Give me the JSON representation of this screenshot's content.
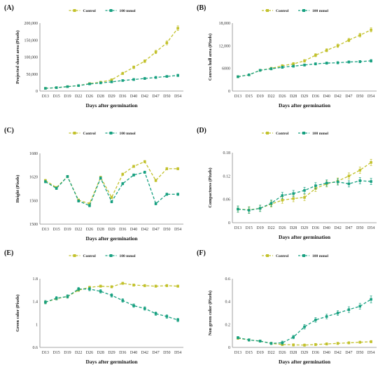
{
  "colors": {
    "control": "#c2c12b",
    "treatment": "#17a080",
    "axis": "#8a8a8a",
    "grid": "#d9d9d9"
  },
  "x_categories": [
    "D13",
    "D15",
    "D19",
    "D22",
    "D26",
    "D28",
    "D29",
    "D36",
    "D40",
    "D42",
    "D47",
    "D50",
    "D54"
  ],
  "chart_data": [
    {
      "type": "line",
      "panel_label": "(A)",
      "title": "",
      "xlabel": "Days after germination",
      "ylabel": "Projected shoot area (Pixels)",
      "ylim": [
        0,
        200000
      ],
      "yticks": [
        0,
        50000,
        100000,
        150000,
        200000
      ],
      "ytick_labels": [
        "0",
        "50,000",
        "100,000",
        "150,000",
        "200,000"
      ],
      "legend": "top-center",
      "series": [
        {
          "name": "Control",
          "values": [
            8000,
            10000,
            13000,
            16000,
            22000,
            26000,
            33000,
            52000,
            70000,
            88000,
            115000,
            142000,
            185000
          ],
          "errors": [
            1500,
            1500,
            1500,
            2000,
            2500,
            2500,
            3000,
            3500,
            4000,
            4000,
            5000,
            6000,
            7000
          ]
        },
        {
          "name": "100 mmol",
          "values": [
            8000,
            10000,
            13000,
            16000,
            21000,
            24000,
            27000,
            31000,
            34000,
            37000,
            40000,
            43000,
            46000
          ],
          "errors": [
            1500,
            1500,
            1500,
            2000,
            2000,
            2000,
            2500,
            2500,
            3000,
            3000,
            3000,
            3000,
            3500
          ]
        }
      ]
    },
    {
      "type": "line",
      "panel_label": "(B)",
      "title": "",
      "xlabel": "Days after germination",
      "ylabel": "Convex hull area (Pixels)",
      "ylim": [
        0,
        18000
      ],
      "yticks": [
        0,
        6000,
        12000,
        18000
      ],
      "ytick_labels": [
        "0",
        "6000",
        "12,000",
        "18,000"
      ],
      "legend": "top-center",
      "series": [
        {
          "name": "Control",
          "values": [
            3800,
            4300,
            5500,
            6000,
            6700,
            7200,
            8000,
            9500,
            10800,
            12000,
            13500,
            14800,
            16200
          ],
          "errors": [
            250,
            250,
            250,
            300,
            300,
            350,
            350,
            400,
            400,
            450,
            450,
            500,
            550
          ]
        },
        {
          "name": "100 mmol",
          "values": [
            3800,
            4300,
            5500,
            5900,
            6300,
            6600,
            6900,
            7200,
            7400,
            7500,
            7700,
            7800,
            8000
          ],
          "errors": [
            250,
            250,
            250,
            300,
            300,
            300,
            300,
            300,
            300,
            300,
            300,
            300,
            350
          ]
        }
      ]
    },
    {
      "type": "line",
      "panel_label": "(C)",
      "title": "",
      "xlabel": "Days after germination",
      "ylabel": "Height (Pixels)",
      "ylim": [
        1500,
        1680
      ],
      "yticks": [
        1500,
        1560,
        1620,
        1680
      ],
      "ytick_labels": [
        "1500",
        "1560",
        "1620",
        "1680"
      ],
      "legend": "top-center",
      "series": [
        {
          "name": "Control",
          "values": [
            1611,
            1593,
            1621,
            1561,
            1552,
            1619,
            1568,
            1627,
            1647,
            1659,
            1611,
            1641,
            1641
          ],
          "errors": [
            3,
            3,
            3,
            3,
            3,
            3,
            3,
            3,
            3,
            3,
            3,
            3,
            3
          ]
        },
        {
          "name": "100 mmol",
          "values": [
            1608,
            1591,
            1621,
            1559,
            1547,
            1617,
            1557,
            1603,
            1625,
            1632,
            1552,
            1576,
            1576
          ],
          "errors": [
            3,
            3,
            3,
            3,
            3,
            3,
            3,
            3,
            3,
            3,
            3,
            3,
            3
          ]
        }
      ]
    },
    {
      "type": "line",
      "panel_label": "(D)",
      "title": "",
      "xlabel": "Days after germination",
      "ylabel": "Compactness (Pixels)",
      "ylim": [
        0,
        0.18
      ],
      "yticks": [
        0,
        0.06,
        0.12,
        0.18
      ],
      "ytick_labels": [
        "0",
        "0.06",
        "0.12",
        "0.18"
      ],
      "legend": "top-center",
      "series": [
        {
          "name": "Control",
          "values": [
            0.035,
            0.033,
            0.037,
            0.048,
            0.058,
            0.062,
            0.065,
            0.088,
            0.1,
            0.107,
            0.12,
            0.135,
            0.155
          ],
          "errors": [
            0.008,
            0.008,
            0.008,
            0.008,
            0.008,
            0.008,
            0.008,
            0.008,
            0.008,
            0.008,
            0.008,
            0.008,
            0.008
          ]
        },
        {
          "name": "100 mmol",
          "values": [
            0.035,
            0.032,
            0.037,
            0.05,
            0.07,
            0.075,
            0.083,
            0.095,
            0.102,
            0.105,
            0.1,
            0.108,
            0.106
          ],
          "errors": [
            0.008,
            0.008,
            0.008,
            0.008,
            0.008,
            0.008,
            0.008,
            0.008,
            0.008,
            0.008,
            0.008,
            0.008,
            0.008
          ]
        }
      ]
    },
    {
      "type": "line",
      "panel_label": "(E)",
      "title": "",
      "xlabel": "Days after germination",
      "ylabel": "Green color (Pixels)",
      "ylim": [
        0.6,
        1.8
      ],
      "yticks": [
        0.6,
        1.0,
        1.4,
        1.8
      ],
      "ytick_labels": [
        "0.6",
        "1",
        "1.4",
        "1.8"
      ],
      "legend": "top-center",
      "series": [
        {
          "name": "Control",
          "values": [
            1.39,
            1.45,
            1.49,
            1.6,
            1.65,
            1.67,
            1.66,
            1.72,
            1.69,
            1.68,
            1.67,
            1.68,
            1.67
          ],
          "errors": [
            0.02,
            0.02,
            0.02,
            0.02,
            0.02,
            0.02,
            0.02,
            0.02,
            0.02,
            0.02,
            0.02,
            0.02,
            0.02
          ]
        },
        {
          "name": "100 mmol",
          "values": [
            1.39,
            1.46,
            1.49,
            1.62,
            1.62,
            1.58,
            1.51,
            1.42,
            1.33,
            1.28,
            1.19,
            1.14,
            1.08
          ],
          "errors": [
            0.03,
            0.03,
            0.03,
            0.03,
            0.03,
            0.03,
            0.03,
            0.03,
            0.03,
            0.03,
            0.03,
            0.03,
            0.03
          ]
        }
      ]
    },
    {
      "type": "line",
      "panel_label": "(F)",
      "title": "",
      "xlabel": "Days after germination",
      "ylabel": "Non green color (Pixels)",
      "ylim": [
        0,
        0.6
      ],
      "yticks": [
        0,
        0.2,
        0.4,
        0.6
      ],
      "ytick_labels": [
        "0",
        "0.2",
        "0.4",
        "0.6"
      ],
      "legend": "top-center",
      "series": [
        {
          "name": "Control",
          "values": [
            0.08,
            0.065,
            0.055,
            0.035,
            0.025,
            0.022,
            0.02,
            0.025,
            0.03,
            0.035,
            0.04,
            0.045,
            0.05
          ],
          "errors": [
            0.01,
            0.01,
            0.01,
            0.01,
            0.01,
            0.01,
            0.01,
            0.01,
            0.01,
            0.01,
            0.01,
            0.01,
            0.01
          ]
        },
        {
          "name": "100 mmol",
          "values": [
            0.085,
            0.065,
            0.055,
            0.035,
            0.04,
            0.09,
            0.18,
            0.24,
            0.27,
            0.3,
            0.33,
            0.36,
            0.42
          ],
          "errors": [
            0.01,
            0.01,
            0.01,
            0.01,
            0.015,
            0.015,
            0.02,
            0.02,
            0.02,
            0.02,
            0.025,
            0.025,
            0.03
          ]
        }
      ]
    }
  ]
}
